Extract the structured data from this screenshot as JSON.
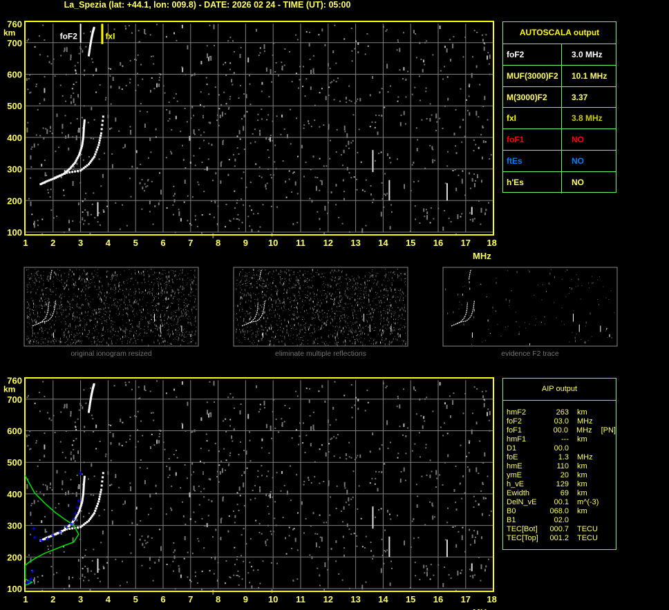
{
  "title": "La_Spezia (lat: +44.1, lon: 009.8) - DATE: 2026 02 24 - TIME (UT): 05:00",
  "colors": {
    "frame": "#ffff00",
    "grid": "#808080",
    "label": "#ffff66",
    "table_border": "#66ff66",
    "fitted_profile": "#00dd00",
    "fitted_points": "#0000ff",
    "foF1": "#ff0000",
    "ftEs": "#0080ff"
  },
  "autoscala": {
    "title": "AUTOSCALA output",
    "rows": [
      {
        "key": "foF2",
        "value": "3.0 MHz",
        "key_color": "#ffffff",
        "value_color": "#ffffff"
      },
      {
        "key": "MUF(3000)F2",
        "value": "10.1 MHz",
        "key_color": "#ffff66",
        "value_color": "#ffff66"
      },
      {
        "key": "M(3000)F2",
        "value": "3.37",
        "key_color": "#ffff66",
        "value_color": "#ffff66"
      },
      {
        "key": "fxI",
        "value": "3.8 MHz",
        "key_color": "#ffff00",
        "value_color": "#cccc00"
      },
      {
        "key": "foF1",
        "value": "NO",
        "key_color": "#ff0000",
        "value_color": "#ff0000"
      },
      {
        "key": "ftEs",
        "value": "NO",
        "key_color": "#0080ff",
        "value_color": "#0080ff"
      },
      {
        "key": "h'Es",
        "value": "NO",
        "key_color": "#ffff66",
        "value_color": "#ffff66"
      }
    ]
  },
  "aip": {
    "title": "AIP output",
    "rows": [
      [
        "hmF2",
        "263",
        "km",
        ""
      ],
      [
        "foF2",
        "03.0",
        "MHz",
        ""
      ],
      [
        "foF1",
        "00.0",
        "MHz",
        "[PN]"
      ],
      [
        "hmF1",
        "---",
        "km",
        ""
      ],
      [
        "D1",
        "00.0",
        "",
        ""
      ],
      [
        "foE",
        "1.3",
        "MHz",
        ""
      ],
      [
        "hmE",
        "110",
        "km",
        ""
      ],
      [
        "ymE",
        "20",
        "km",
        ""
      ],
      [
        "h_vE",
        "129",
        "km",
        ""
      ],
      [
        "Ewidth",
        "69",
        "km",
        ""
      ],
      [
        "DelN_vE",
        "00.1",
        "m^(-3)",
        ""
      ],
      [
        "B0",
        "068.0",
        "km",
        ""
      ],
      [
        "B1",
        "02.0",
        "",
        ""
      ],
      [
        "TEC[Bot]",
        "000.7",
        "TECU",
        ""
      ],
      [
        "TEC[Top]",
        "001.2",
        "TECU",
        ""
      ]
    ]
  },
  "thumbnails": [
    "original ionogram resized",
    "eliminate multiple reflections",
    "evidence F2 trace"
  ],
  "chart_data": [
    {
      "type": "scatter",
      "panel": "top ionogram",
      "xlabel": "MHz",
      "ylabel": "km",
      "xlim": [
        1,
        18
      ],
      "ylim": [
        100,
        760
      ],
      "xticks": [
        "1",
        "2",
        "3",
        "4",
        "5",
        "6",
        "7",
        "8",
        "9",
        "10",
        "11",
        "12",
        "13",
        "14",
        "15",
        "16",
        "17",
        "18"
      ],
      "yticks": [
        "100",
        "200",
        "300",
        "400",
        "500",
        "600",
        "700",
        "760"
      ],
      "grid": true,
      "markers": [
        {
          "label": "foF2",
          "x": 3.0,
          "color": "#ffffff"
        },
        {
          "label": "fxI",
          "x": 3.8,
          "color": "#ffff00"
        }
      ],
      "traces": {
        "o_trace": [
          [
            1.55,
            252
          ],
          [
            1.8,
            262
          ],
          [
            2.1,
            272
          ],
          [
            2.4,
            285
          ],
          [
            2.6,
            300
          ],
          [
            2.8,
            320
          ],
          [
            2.95,
            345
          ],
          [
            3.05,
            372
          ],
          [
            3.1,
            400
          ],
          [
            3.12,
            430
          ],
          [
            3.15,
            460
          ]
        ],
        "x_trace": [
          [
            2.08,
            273
          ],
          [
            2.5,
            288
          ],
          [
            3.0,
            295
          ],
          [
            3.3,
            315
          ],
          [
            3.5,
            339
          ],
          [
            3.66,
            376
          ],
          [
            3.75,
            413
          ],
          [
            3.84,
            479
          ]
        ],
        "upper_trace": [
          [
            3.3,
            660
          ],
          [
            3.35,
            690
          ],
          [
            3.4,
            715
          ],
          [
            3.45,
            735
          ],
          [
            3.5,
            750
          ]
        ]
      }
    },
    {
      "type": "line",
      "panel": "bottom ionogram",
      "xlabel": "MHz",
      "ylabel": "km",
      "xlim": [
        1,
        18
      ],
      "ylim": [
        100,
        760
      ],
      "grid": true,
      "fitted_profile": [
        [
          0.98,
          458
        ],
        [
          1.33,
          403
        ],
        [
          1.7,
          370
        ],
        [
          2.08,
          341
        ],
        [
          2.45,
          318
        ],
        [
          2.75,
          301
        ],
        [
          2.93,
          272
        ],
        [
          2.75,
          247
        ],
        [
          2.4,
          236
        ],
        [
          2.08,
          225
        ],
        [
          1.7,
          212
        ],
        [
          1.41,
          199
        ],
        [
          1.15,
          185
        ],
        [
          0.99,
          174
        ],
        [
          0.99,
          130
        ],
        [
          1.23,
          120
        ],
        [
          1.1,
          114
        ],
        [
          0.99,
          111
        ]
      ],
      "fitted_points": [
        [
          1.33,
          262
        ],
        [
          1.58,
          252
        ],
        [
          1.8,
          258
        ],
        [
          2.0,
          268
        ],
        [
          2.25,
          280
        ],
        [
          2.5,
          294
        ],
        [
          2.65,
          305
        ],
        [
          2.75,
          320
        ],
        [
          2.82,
          338
        ],
        [
          2.88,
          356
        ],
        [
          2.94,
          378
        ],
        [
          3.0,
          465
        ],
        [
          1.3,
          290
        ],
        [
          1.26,
          155
        ],
        [
          1.2,
          130
        ],
        [
          1.05,
          118
        ],
        [
          1.12,
          122
        ]
      ]
    }
  ]
}
